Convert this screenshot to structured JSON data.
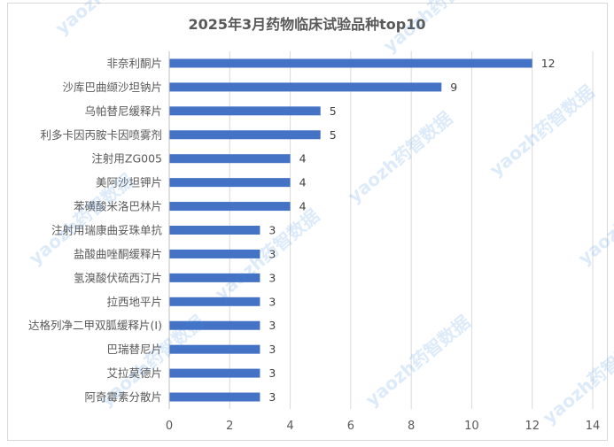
{
  "chart_data": {
    "type": "bar",
    "orientation": "horizontal",
    "title": "2025年3月药物临床试验品种top10",
    "categories": [
      "非奈利酮片",
      "沙库巴曲缬沙坦钠片",
      "乌帕替尼缓释片",
      "利多卡因丙胺卡因喷雾剂",
      "注射用ZG005",
      "美阿沙坦钾片",
      "苯磺酸米洛巴林片",
      "注射用瑞康曲妥珠单抗",
      "盐酸曲唑酮缓释片",
      "氢溴酸伏硫西汀片",
      "拉西地平片",
      "达格列净二甲双胍缓释片(Ⅰ)",
      "巴瑞替尼片",
      "艾拉莫德片",
      "阿奇霉素分散片"
    ],
    "values": [
      12,
      9,
      5,
      5,
      4,
      4,
      4,
      3,
      3,
      3,
      3,
      3,
      3,
      3,
      3
    ],
    "xlim": [
      0,
      14
    ],
    "x_ticks": [
      0,
      2,
      4,
      6,
      8,
      10,
      12,
      14
    ],
    "grid": true,
    "legend": "none",
    "bar_color": "#4472c4",
    "grid_color": "#d9d9d9",
    "text_color": "#595959",
    "watermark": "yaozh药智数据"
  }
}
